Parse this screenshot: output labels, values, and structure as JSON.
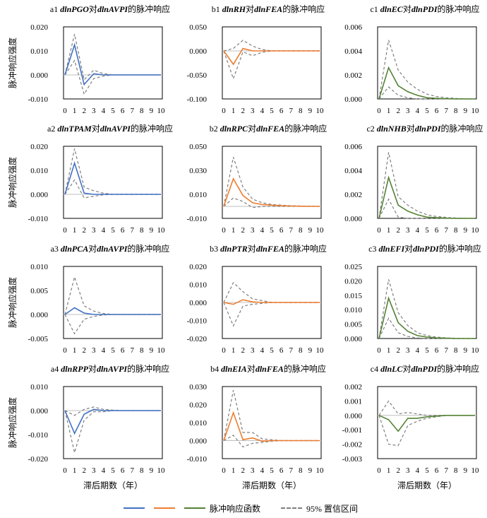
{
  "chart_data": [
    {
      "id": "a1",
      "type": "line",
      "prefix": "a1 ",
      "var1": "dlnPGO",
      "mid": "对",
      "var2": "dlnAVPI",
      "suffix": "的脉冲响应",
      "ylim": [
        -0.01,
        0.02
      ],
      "yticks": [
        "0.020",
        "0.010",
        "0.000",
        "-0.010"
      ],
      "ytick_values": [
        0.02,
        0.01,
        0,
        -0.01
      ],
      "ylabel": "脉冲响应强度",
      "xlabel": "",
      "x": [
        0,
        1,
        2,
        3,
        4,
        5,
        6,
        7,
        8,
        9,
        10
      ],
      "color": "#4472C4",
      "irf": [
        0,
        0.0125,
        -0.004,
        0.0005,
        0,
        0,
        0,
        0,
        0,
        0,
        0
      ],
      "upper": [
        0,
        0.017,
        -0.002,
        0.002,
        0.0005,
        0,
        0,
        0,
        0,
        0,
        0
      ],
      "lower": [
        0,
        0.006,
        -0.008,
        -0.0015,
        -0.0005,
        0,
        0,
        0,
        0,
        0,
        0
      ]
    },
    {
      "id": "b1",
      "type": "line",
      "prefix": "b1 ",
      "var1": "dlnRH",
      "mid": "对",
      "var2": "dlnFEA",
      "suffix": "的脉冲响应",
      "ylim": [
        -0.1,
        0.05
      ],
      "yticks": [
        "0.050",
        "0.000",
        "-0.050",
        "-0.100"
      ],
      "ytick_values": [
        0.05,
        0,
        -0.05,
        -0.1
      ],
      "ylabel": "",
      "xlabel": "",
      "x": [
        0,
        1,
        2,
        3,
        4,
        5,
        6,
        7,
        8,
        9,
        10
      ],
      "color": "#ED7D31",
      "irf": [
        0,
        -0.028,
        0.005,
        0,
        0,
        0,
        0,
        0,
        0,
        0,
        0
      ],
      "upper": [
        0,
        0.005,
        0.022,
        0.01,
        0.003,
        0,
        0,
        0,
        0,
        0,
        0
      ],
      "lower": [
        0,
        -0.058,
        -0.002,
        -0.01,
        -0.003,
        0,
        0,
        0,
        0,
        0,
        0
      ]
    },
    {
      "id": "c1",
      "type": "line",
      "prefix": "c1 ",
      "var1": "dlnEC",
      "mid": "对",
      "var2": "dlnPDI",
      "suffix": "的脉冲响应",
      "ylim": [
        0,
        0.006
      ],
      "yticks": [
        "0.006",
        "0.004",
        "0.002",
        "0.000"
      ],
      "ytick_values": [
        0.006,
        0.004,
        0.002,
        0
      ],
      "ylabel": "",
      "xlabel": "",
      "x": [
        0,
        1,
        2,
        3,
        4,
        5,
        6,
        7,
        8,
        9,
        10
      ],
      "color": "#548235",
      "irf": [
        0,
        0.0026,
        0.0011,
        0.0006,
        0.0003,
        0.0001,
        5e-05,
        2e-05,
        0,
        0,
        0
      ],
      "upper": [
        0,
        0.0049,
        0.0024,
        0.0014,
        0.0008,
        0.0004,
        0.0002,
        0.0001,
        5e-05,
        2e-05,
        0
      ],
      "lower": [
        0,
        0.001,
        0.0003,
        0.0001,
        0,
        0,
        0,
        0,
        0,
        0,
        0
      ]
    },
    {
      "id": "a2",
      "type": "line",
      "prefix": "a2 ",
      "var1": "dlnTPAM",
      "mid": "对",
      "var2": "dlnAVPI",
      "suffix": "的脉冲响应",
      "ylim": [
        -0.01,
        0.02
      ],
      "yticks": [
        "0.020",
        "0.010",
        "0.000",
        "-0.010"
      ],
      "ytick_values": [
        0.02,
        0.01,
        0,
        -0.01
      ],
      "ylabel": "脉冲响应强度",
      "xlabel": "",
      "x": [
        0,
        1,
        2,
        3,
        4,
        5,
        6,
        7,
        8,
        9,
        10
      ],
      "color": "#4472C4",
      "irf": [
        0,
        0.013,
        0.0005,
        0,
        0,
        0,
        0,
        0,
        0,
        0,
        0
      ],
      "upper": [
        0,
        0.019,
        0.003,
        0.0015,
        0.0005,
        0,
        0,
        0,
        0,
        0,
        0
      ],
      "lower": [
        0,
        0.006,
        -0.0015,
        -0.0008,
        -0.0002,
        0,
        0,
        0,
        0,
        0,
        0
      ]
    },
    {
      "id": "b2",
      "type": "line",
      "prefix": "b2 ",
      "var1": "dlnRPC",
      "mid": "对",
      "var2": "dlnFEA",
      "suffix": "的脉冲响应",
      "ylim": [
        -0.01,
        0.05
      ],
      "yticks": [
        "0.050",
        "0.030",
        "0.010",
        "-0.010"
      ],
      "ytick_values": [
        0.05,
        0.03,
        0.01,
        -0.01
      ],
      "ylabel": "",
      "xlabel": "",
      "x": [
        0,
        1,
        2,
        3,
        4,
        5,
        6,
        7,
        8,
        9,
        10
      ],
      "color": "#ED7D31",
      "irf": [
        0,
        0.023,
        0.009,
        0.003,
        0.0015,
        0.001,
        0.0005,
        0.0003,
        0.0001,
        0,
        0
      ],
      "upper": [
        0,
        0.041,
        0.016,
        0.006,
        0.003,
        0.0015,
        0.001,
        0.0005,
        0.0003,
        0.0001,
        0
      ],
      "lower": [
        0,
        0.007,
        0.004,
        -0.001,
        -0.0002,
        0,
        0,
        0,
        0,
        0,
        0
      ]
    },
    {
      "id": "c2",
      "type": "line",
      "prefix": "c2 ",
      "var1": "dlnNHB",
      "mid": "对",
      "var2": "dlnPDI",
      "suffix": "的脉冲响应",
      "ylim": [
        0,
        0.006
      ],
      "yticks": [
        "0.006",
        "0.004",
        "0.002",
        "0.000"
      ],
      "ytick_values": [
        0.006,
        0.004,
        0.002,
        0
      ],
      "ylabel": "",
      "xlabel": "",
      "x": [
        0,
        1,
        2,
        3,
        4,
        5,
        6,
        7,
        8,
        9,
        10
      ],
      "color": "#548235",
      "irf": [
        0,
        0.0034,
        0.0011,
        0.0006,
        0.0003,
        0.0001,
        5e-05,
        2e-05,
        0,
        0,
        0
      ],
      "upper": [
        0,
        0.0055,
        0.0018,
        0.0011,
        0.0006,
        0.0003,
        0.00015,
        8e-05,
        3e-05,
        1e-05,
        0
      ],
      "lower": [
        0,
        0.0016,
        0.0001,
        0,
        0,
        0,
        0,
        0,
        0,
        0,
        0
      ]
    },
    {
      "id": "a3",
      "type": "line",
      "prefix": "a3 ",
      "var1": "dlnPCA",
      "mid": "对",
      "var2": "dlnAVPI",
      "suffix": "的脉冲响应",
      "ylim": [
        -0.005,
        0.01
      ],
      "yticks": [
        "0.010",
        "0.005",
        "0.000",
        "-0.005"
      ],
      "ytick_values": [
        0.01,
        0.005,
        0,
        -0.005
      ],
      "ylabel": "脉冲响应强度",
      "xlabel": "",
      "x": [
        0,
        1,
        2,
        3,
        4,
        5,
        6,
        7,
        8,
        9,
        10
      ],
      "color": "#4472C4",
      "irf": [
        0,
        0.0014,
        0.0003,
        0,
        0,
        0,
        0,
        0,
        0,
        0,
        0
      ],
      "upper": [
        0,
        0.0078,
        0.0018,
        0.0007,
        0.0002,
        0,
        0,
        0,
        0,
        0,
        0
      ],
      "lower": [
        0,
        -0.004,
        -0.001,
        -0.0004,
        -0.0001,
        0,
        0,
        0,
        0,
        0,
        0
      ]
    },
    {
      "id": "b3",
      "type": "line",
      "prefix": "b3 ",
      "var1": "dlnPTR",
      "mid": "对",
      "var2": "dlnFEA",
      "suffix": "的脉冲响应",
      "ylim": [
        -0.02,
        0.02
      ],
      "yticks": [
        "0.020",
        "0.010",
        "0.000",
        "-0.010",
        "-0.020"
      ],
      "ytick_values": [
        0.02,
        0.01,
        0,
        -0.01,
        -0.02
      ],
      "ylabel": "",
      "xlabel": "",
      "x": [
        0,
        1,
        2,
        3,
        4,
        5,
        6,
        7,
        8,
        9,
        10
      ],
      "color": "#ED7D31",
      "irf": [
        0,
        -0.001,
        0.0015,
        0.0003,
        0,
        0,
        0,
        0,
        0,
        0,
        0
      ],
      "upper": [
        0,
        0.011,
        0.006,
        0.002,
        0.001,
        0,
        0,
        0,
        0,
        0,
        0
      ],
      "lower": [
        0,
        -0.013,
        -0.002,
        -0.001,
        -0.0005,
        0,
        0,
        0,
        0,
        0,
        0
      ]
    },
    {
      "id": "c3",
      "type": "line",
      "prefix": "c3 ",
      "var1": "dlnEFI",
      "mid": "对",
      "var2": "dlnPDI",
      "suffix": "的脉冲响应",
      "ylim": [
        0,
        0.025
      ],
      "yticks": [
        "0.025",
        "0.020",
        "0.015",
        "0.010",
        "0.005",
        "0.000"
      ],
      "ytick_values": [
        0.025,
        0.02,
        0.015,
        0.01,
        0.005,
        0
      ],
      "ylabel": "",
      "xlabel": "",
      "x": [
        0,
        1,
        2,
        3,
        4,
        5,
        6,
        7,
        8,
        9,
        10
      ],
      "color": "#548235",
      "irf": [
        0,
        0.014,
        0.0055,
        0.0025,
        0.001,
        0.0005,
        0.0002,
        0.0001,
        0,
        0,
        0
      ],
      "upper": [
        0,
        0.0205,
        0.009,
        0.0045,
        0.002,
        0.001,
        0.0005,
        0.0002,
        0.0001,
        0,
        0
      ],
      "lower": [
        0,
        0.007,
        0.002,
        0.0007,
        0.0002,
        0,
        0,
        0,
        0,
        0,
        0
      ]
    },
    {
      "id": "a4",
      "type": "line",
      "prefix": "a4 ",
      "var1": "dlnRPP",
      "mid": "对",
      "var2": "dlnAVPI",
      "suffix": "的脉冲响应",
      "ylim": [
        -0.02,
        0.01
      ],
      "yticks": [
        "0.010",
        "0.000",
        "-0.010",
        "-0.020"
      ],
      "ytick_values": [
        0.01,
        0,
        -0.01,
        -0.02
      ],
      "ylabel": "脉冲响应强度",
      "xlabel": "滞后期数（年）",
      "x": [
        0,
        1,
        2,
        3,
        4,
        5,
        6,
        7,
        8,
        9,
        10
      ],
      "color": "#4472C4",
      "irf": [
        0,
        -0.0095,
        -0.0015,
        0.0005,
        0,
        0,
        0,
        0,
        0,
        0,
        0
      ],
      "upper": [
        0,
        -0.002,
        0.0005,
        0.0015,
        0.0005,
        0.0002,
        0,
        0,
        0,
        0,
        0
      ],
      "lower": [
        0,
        -0.0175,
        -0.004,
        -0.0005,
        -0.0005,
        0,
        0,
        0,
        0,
        0,
        0
      ]
    },
    {
      "id": "b4",
      "type": "line",
      "prefix": "b4 ",
      "var1": "dlnEIA",
      "mid": "对",
      "var2": "dlnFEA",
      "suffix": "的脉冲响应",
      "ylim": [
        -0.01,
        0.03
      ],
      "yticks": [
        "0.030",
        "0.020",
        "0.010",
        "0.000",
        "-0.010"
      ],
      "ytick_values": [
        0.03,
        0.02,
        0.01,
        0,
        -0.01
      ],
      "ylabel": "",
      "xlabel": "滞后期数（年）",
      "x": [
        0,
        1,
        2,
        3,
        4,
        5,
        6,
        7,
        8,
        9,
        10
      ],
      "color": "#ED7D31",
      "irf": [
        0,
        0.0155,
        0.0005,
        0.0015,
        -0.0003,
        0,
        0,
        0,
        0,
        0,
        0
      ],
      "upper": [
        0,
        0.028,
        0.0045,
        0.0045,
        0.001,
        0.0005,
        0,
        0,
        0,
        0,
        0
      ],
      "lower": [
        0,
        0.003,
        -0.0035,
        -0.0015,
        -0.001,
        -0.0003,
        0,
        0,
        0,
        0,
        0
      ]
    },
    {
      "id": "c4",
      "type": "line",
      "prefix": "c4 ",
      "var1": "dlnLC",
      "mid": "对",
      "var2": "dlnPDI",
      "suffix": "的脉冲响应",
      "ylim": [
        -0.003,
        0.002
      ],
      "yticks": [
        "0.002",
        "0.001",
        "0.000",
        "-0.001",
        "-0.002",
        "-0.003"
      ],
      "ytick_values": [
        0.002,
        0.001,
        0,
        -0.001,
        -0.002,
        -0.003
      ],
      "ylabel": "",
      "xlabel": "滞后期数（年）",
      "x": [
        0,
        1,
        2,
        3,
        4,
        5,
        6,
        7,
        8,
        9,
        10
      ],
      "color": "#548235",
      "irf": [
        0,
        -0.0003,
        -0.0011,
        -0.0002,
        -0.0002,
        -0.0001,
        -5e-05,
        0,
        0,
        0,
        0
      ],
      "upper": [
        0,
        0.001,
        0.0001,
        0.0002,
        0.0001,
        0,
        0,
        0,
        0,
        0,
        0
      ],
      "lower": [
        0,
        -0.002,
        -0.0021,
        -0.0007,
        -0.0004,
        -0.0002,
        -0.0001,
        0,
        0,
        0,
        0
      ]
    }
  ],
  "legend": {
    "irf_label": "脉冲响应函数",
    "ci_label": "95% 置信区间",
    "colors": [
      "#4472C4",
      "#ED7D31",
      "#548235"
    ],
    "ci_color": "#7F7F7F"
  }
}
